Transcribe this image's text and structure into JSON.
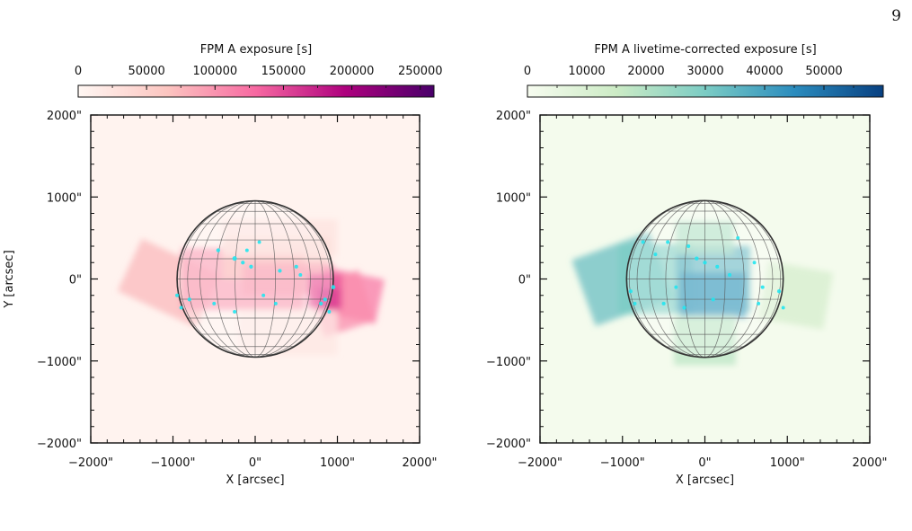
{
  "page": {
    "page_number": "9"
  },
  "chart_data": [
    {
      "type": "heatmap",
      "colorbar": {
        "label": "FPM A exposure [s]",
        "ticks": [
          "0",
          "50000",
          "100000",
          "150000",
          "200000",
          "250000"
        ],
        "range": [
          0,
          260000
        ],
        "colormap": "RdPu",
        "colors": [
          "#fff7f3",
          "#fcc5c0",
          "#f768a1",
          "#ae017e",
          "#49006a"
        ]
      },
      "xlabel": "X [arcsec]",
      "ylabel": "Y [arcsec]",
      "xlim": [
        -2000,
        2000
      ],
      "ylim": [
        -2000,
        2000
      ],
      "x_ticks": [
        "−2000\"",
        "−1000\"",
        "0\"",
        "1000\"",
        "2000\""
      ],
      "y_ticks": [
        "2000\"",
        "1000\"",
        "0\"",
        "−1000\"",
        "−2000\""
      ],
      "solar_disk_radius_arcsec": 950,
      "pointings": [
        {
          "cx": 0,
          "cy": 0,
          "w": 4000,
          "h": 4000,
          "angle": 0,
          "level": 0.02
        },
        {
          "cx": -1050,
          "cy": -50,
          "w": 1050,
          "h": 700,
          "angle": -25,
          "level": 0.28
        },
        {
          "cx": -150,
          "cy": 0,
          "w": 1500,
          "h": 750,
          "angle": 0,
          "level": 0.38
        },
        {
          "cx": 250,
          "cy": 250,
          "w": 1300,
          "h": 500,
          "angle": 0,
          "level": 0.25
        },
        {
          "cx": 400,
          "cy": 0,
          "w": 1100,
          "h": 380,
          "angle": 0,
          "level": 0.35
        },
        {
          "cx": 1150,
          "cy": -200,
          "w": 750,
          "h": 550,
          "angle": -12,
          "level": 0.45
        },
        {
          "cx": 1050,
          "cy": -300,
          "w": 650,
          "h": 650,
          "angle": 18,
          "level": 0.4
        },
        {
          "cx": 850,
          "cy": -150,
          "w": 420,
          "h": 420,
          "angle": 0,
          "level": 0.55
        },
        {
          "cx": 400,
          "cy": -650,
          "w": 1200,
          "h": 550,
          "angle": 0,
          "level": 0.08
        },
        {
          "cx": 300,
          "cy": 500,
          "w": 1400,
          "h": 450,
          "angle": 0,
          "level": 0.1
        },
        {
          "cx": 900,
          "cy": -250,
          "w": 260,
          "h": 260,
          "angle": 0,
          "level": 0.6
        }
      ],
      "flares": [
        {
          "x": -450,
          "y": 350,
          "r": 14
        },
        {
          "x": -250,
          "y": 250,
          "r": 22
        },
        {
          "x": -150,
          "y": 200,
          "r": 14
        },
        {
          "x": -50,
          "y": 150,
          "r": 14
        },
        {
          "x": -100,
          "y": 350,
          "r": 10
        },
        {
          "x": 50,
          "y": 450,
          "r": 10
        },
        {
          "x": 300,
          "y": 100,
          "r": 14
        },
        {
          "x": 500,
          "y": 150,
          "r": 12
        },
        {
          "x": 550,
          "y": 50,
          "r": 10
        },
        {
          "x": 950,
          "y": -100,
          "r": 18
        },
        {
          "x": 850,
          "y": -250,
          "r": 14
        },
        {
          "x": 800,
          "y": -300,
          "r": 14
        },
        {
          "x": 900,
          "y": -400,
          "r": 10
        },
        {
          "x": -950,
          "y": -200,
          "r": 12
        },
        {
          "x": -800,
          "y": -250,
          "r": 12
        },
        {
          "x": -500,
          "y": -300,
          "r": 10
        },
        {
          "x": -250,
          "y": -400,
          "r": 12
        },
        {
          "x": 100,
          "y": -200,
          "r": 10
        },
        {
          "x": -900,
          "y": -350,
          "r": 10
        },
        {
          "x": 250,
          "y": -300,
          "r": 10
        }
      ]
    },
    {
      "type": "heatmap",
      "colorbar": {
        "label": "FPM A livetime-corrected exposure [s]",
        "ticks": [
          "0",
          "10000",
          "20000",
          "30000",
          "40000",
          "50000"
        ],
        "range": [
          0,
          60000
        ],
        "colormap": "GnBu",
        "colors": [
          "#f7fcf0",
          "#ccebc5",
          "#7bccc4",
          "#2b8cbe",
          "#084081"
        ]
      },
      "xlabel": "X [arcsec]",
      "ylabel": "",
      "xlim": [
        -2000,
        2000
      ],
      "ylim": [
        -2000,
        2000
      ],
      "x_ticks": [
        "−2000\"",
        "−1000\"",
        "0\"",
        "1000\"",
        "2000\""
      ],
      "y_ticks": [
        "2000\"",
        "1000\"",
        "0\"",
        "−1000\"",
        "−2000\""
      ],
      "solar_disk_radius_arcsec": 950,
      "pointings": [
        {
          "cx": 0,
          "cy": 0,
          "w": 4000,
          "h": 4000,
          "angle": 0,
          "level": 0.03
        },
        {
          "cx": -1000,
          "cy": 0,
          "w": 1000,
          "h": 850,
          "angle": 20,
          "level": 0.55
        },
        {
          "cx": -600,
          "cy": 0,
          "w": 900,
          "h": 850,
          "angle": 0,
          "level": 0.5
        },
        {
          "cx": 100,
          "cy": 0,
          "w": 900,
          "h": 800,
          "angle": 0,
          "level": 0.6
        },
        {
          "cx": 100,
          "cy": -200,
          "w": 800,
          "h": 550,
          "angle": 0,
          "level": 0.7
        },
        {
          "cx": 1100,
          "cy": -200,
          "w": 800,
          "h": 700,
          "angle": -10,
          "level": 0.2
        },
        {
          "cx": 0,
          "cy": -750,
          "w": 750,
          "h": 600,
          "angle": 0,
          "level": 0.3
        },
        {
          "cx": 0,
          "cy": 500,
          "w": 700,
          "h": 400,
          "angle": 0,
          "level": 0.35
        }
      ],
      "flares": [
        {
          "x": -750,
          "y": 450,
          "r": 12
        },
        {
          "x": -450,
          "y": 450,
          "r": 12
        },
        {
          "x": -200,
          "y": 400,
          "r": 12
        },
        {
          "x": -100,
          "y": 250,
          "r": 16
        },
        {
          "x": 0,
          "y": 200,
          "r": 14
        },
        {
          "x": 150,
          "y": 150,
          "r": 12
        },
        {
          "x": 300,
          "y": 50,
          "r": 12
        },
        {
          "x": 600,
          "y": 200,
          "r": 10
        },
        {
          "x": 700,
          "y": -100,
          "r": 12
        },
        {
          "x": 900,
          "y": -150,
          "r": 14
        },
        {
          "x": 950,
          "y": -350,
          "r": 10
        },
        {
          "x": 650,
          "y": -300,
          "r": 10
        },
        {
          "x": -900,
          "y": -150,
          "r": 12
        },
        {
          "x": -850,
          "y": -300,
          "r": 10
        },
        {
          "x": -500,
          "y": -300,
          "r": 12
        },
        {
          "x": -250,
          "y": -350,
          "r": 12
        },
        {
          "x": 100,
          "y": -250,
          "r": 12
        },
        {
          "x": -600,
          "y": 300,
          "r": 10
        },
        {
          "x": 400,
          "y": 500,
          "r": 10
        },
        {
          "x": -350,
          "y": -100,
          "r": 10
        }
      ]
    }
  ]
}
